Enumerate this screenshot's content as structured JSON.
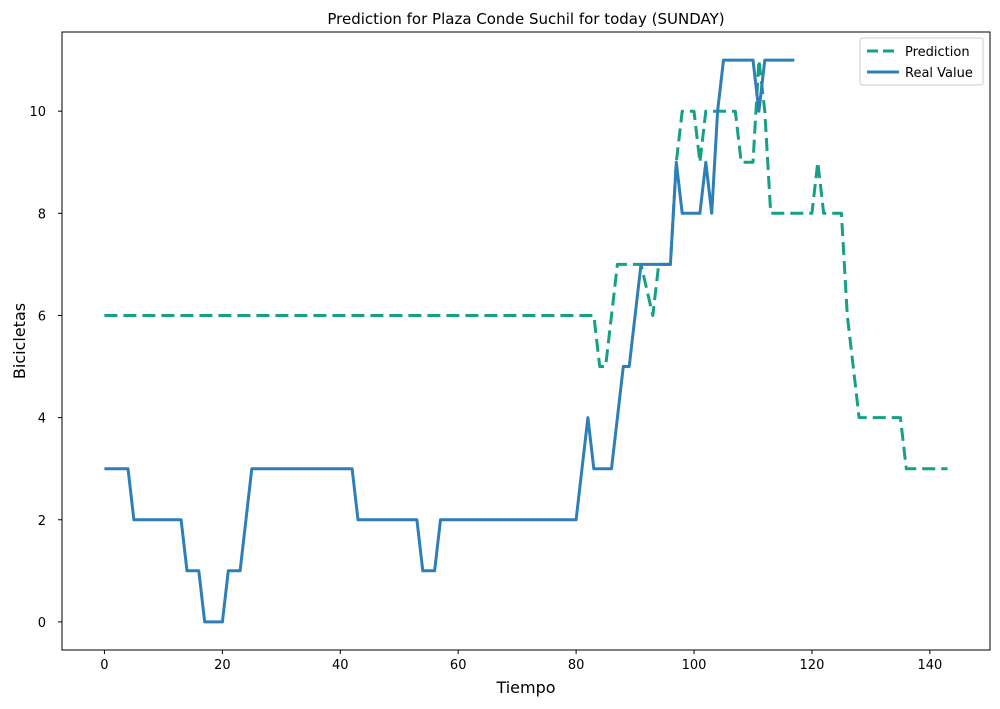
{
  "chart_data": {
    "type": "line",
    "title": "Prediction for Plaza Conde Suchil for today (SUNDAY)",
    "xlabel": "Tiempo",
    "ylabel": "Bicicletas",
    "xlim": [
      -7.2,
      150.2
    ],
    "ylim": [
      -0.55,
      11.55
    ],
    "xticks": [
      0,
      20,
      40,
      60,
      80,
      100,
      120,
      140
    ],
    "yticks": [
      0,
      2,
      4,
      6,
      8,
      10
    ],
    "grid": false,
    "legend_position": "top-right",
    "series": [
      {
        "name": "Prediction",
        "color": "#16a085",
        "style": "dashed",
        "x": [
          0,
          83,
          84,
          85,
          86,
          87,
          91,
          92,
          93,
          94,
          96,
          97,
          98,
          100,
          101,
          102,
          107,
          108,
          110,
          111,
          112,
          113,
          120,
          121,
          122,
          125,
          126,
          127,
          128,
          135,
          136,
          143
        ],
        "y": [
          6,
          6,
          5,
          5,
          6,
          7,
          7,
          6.5,
          6,
          7,
          7,
          9,
          10,
          10,
          9,
          10,
          10,
          9,
          9,
          11,
          10,
          8,
          8,
          9,
          8,
          8,
          6,
          5,
          4,
          4,
          3,
          3
        ]
      },
      {
        "name": "Real Value",
        "color": "#2e7fb8",
        "style": "solid",
        "x": [
          0,
          4,
          5,
          13,
          14,
          16,
          17,
          20,
          21,
          23,
          25,
          42,
          43,
          53,
          54,
          56,
          57,
          80,
          82,
          83,
          86,
          88,
          89,
          91,
          96,
          97,
          98,
          101,
          102,
          103,
          104,
          105,
          110,
          111,
          112,
          117
        ],
        "y": [
          3,
          3,
          2,
          2,
          1,
          1,
          0,
          0,
          1,
          1,
          3,
          3,
          2,
          2,
          1,
          1,
          2,
          2,
          4,
          3,
          3,
          5,
          5,
          7,
          7,
          9,
          8,
          8,
          9,
          8,
          10,
          11,
          11,
          10,
          11,
          11
        ]
      }
    ]
  }
}
